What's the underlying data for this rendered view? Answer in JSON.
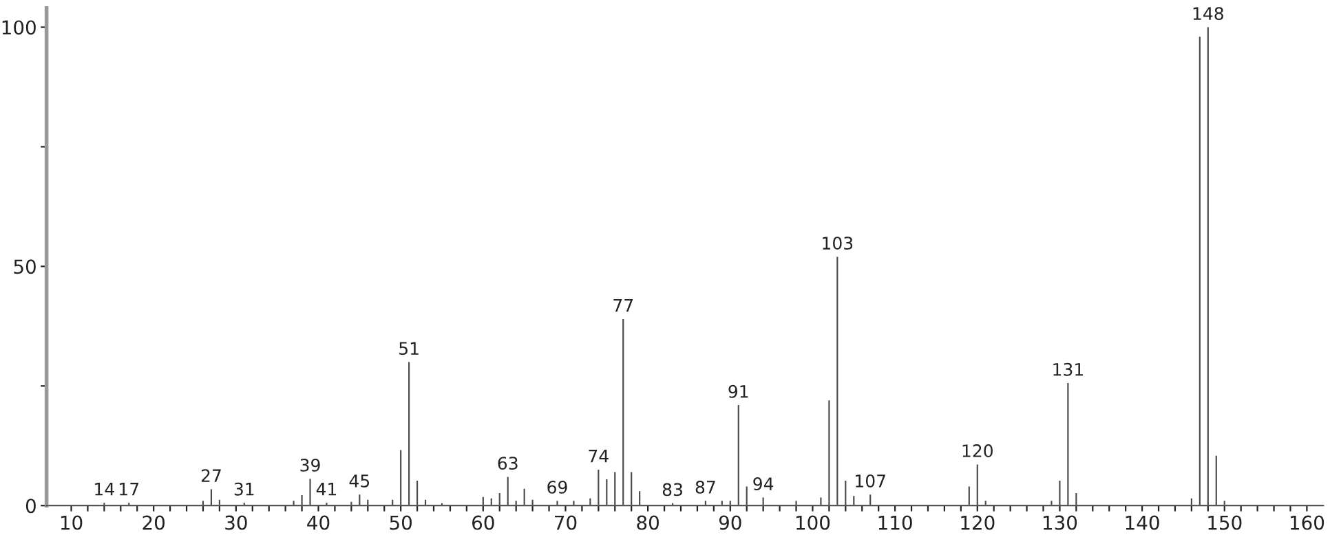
{
  "chart_data": {
    "type": "bar",
    "color": "#4a4a4a",
    "x": [
      14,
      17,
      26,
      27,
      28,
      31,
      37,
      38,
      39,
      41,
      44,
      45,
      46,
      49,
      50,
      51,
      52,
      53,
      55,
      60,
      61,
      62,
      63,
      64,
      65,
      66,
      69,
      71,
      73,
      74,
      75,
      76,
      77,
      78,
      79,
      83,
      87,
      89,
      90,
      91,
      92,
      94,
      98,
      101,
      102,
      103,
      104,
      105,
      107,
      119,
      120,
      121,
      129,
      130,
      131,
      132,
      146,
      147,
      148,
      149,
      150
    ],
    "values": [
      0.6,
      0.6,
      1,
      3.4,
      1.2,
      0.6,
      1,
      2.2,
      5.6,
      0.6,
      0.8,
      2.3,
      1.2,
      1.2,
      11.6,
      30,
      5.2,
      1.2,
      0.5,
      1.8,
      1.5,
      2.6,
      6,
      1,
      3.5,
      1.2,
      1,
      1,
      1.5,
      7.5,
      5.5,
      7,
      39,
      7,
      3,
      0.5,
      1,
      1,
      1,
      21,
      4,
      1.7,
      1,
      1.7,
      22,
      52,
      5.2,
      2,
      2.3,
      4,
      8.6,
      1,
      1,
      5.2,
      25.6,
      2.6,
      1.5,
      98,
      100,
      10.4,
      1
    ],
    "annotations": [
      {
        "text": "14",
        "x": 14,
        "y": 0.6
      },
      {
        "text": "17",
        "x": 17,
        "y": 0.6
      },
      {
        "text": "27",
        "x": 27,
        "y": 3.4
      },
      {
        "text": "31",
        "x": 31,
        "y": 0.6
      },
      {
        "text": "39",
        "x": 39,
        "y": 5.6
      },
      {
        "text": "41",
        "x": 41,
        "y": 0.6
      },
      {
        "text": "45",
        "x": 45,
        "y": 2.3
      },
      {
        "text": "51",
        "x": 51,
        "y": 30
      },
      {
        "text": "63",
        "x": 63,
        "y": 6
      },
      {
        "text": "69",
        "x": 69,
        "y": 1
      },
      {
        "text": "74",
        "x": 74,
        "y": 7.5
      },
      {
        "text": "77",
        "x": 77,
        "y": 39
      },
      {
        "text": "83",
        "x": 83,
        "y": 0.5
      },
      {
        "text": "87",
        "x": 87,
        "y": 1
      },
      {
        "text": "91",
        "x": 91,
        "y": 21
      },
      {
        "text": "94",
        "x": 94,
        "y": 1.7
      },
      {
        "text": "103",
        "x": 103,
        "y": 52
      },
      {
        "text": "107",
        "x": 107,
        "y": 2.3
      },
      {
        "text": "120",
        "x": 120,
        "y": 8.6
      },
      {
        "text": "131",
        "x": 131,
        "y": 25.6
      },
      {
        "text": "148",
        "x": 148,
        "y": 100
      }
    ],
    "xlim": [
      7,
      162
    ],
    "ylim": [
      0,
      104
    ],
    "xticks": [
      10,
      {
        "value": 12,
        "label": null
      },
      {
        "value": 14,
        "label": null
      },
      {
        "value": 16,
        "label": null
      },
      {
        "value": 18,
        "label": null
      },
      20,
      {
        "value": 22,
        "label": null
      },
      {
        "value": 24,
        "label": null
      },
      {
        "value": 26,
        "label": null
      },
      {
        "value": 28,
        "label": null
      },
      30,
      {
        "value": 32,
        "label": null
      },
      {
        "value": 34,
        "label": null
      },
      {
        "value": 36,
        "label": null
      },
      {
        "value": 38,
        "label": null
      },
      40,
      {
        "value": 42,
        "label": null
      },
      {
        "value": 44,
        "label": null
      },
      {
        "value": 46,
        "label": null
      },
      {
        "value": 48,
        "label": null
      },
      50,
      {
        "value": 52,
        "label": null
      },
      {
        "value": 54,
        "label": null
      },
      {
        "value": 56,
        "label": null
      },
      {
        "value": 58,
        "label": null
      },
      60,
      {
        "value": 62,
        "label": null
      },
      {
        "value": 64,
        "label": null
      },
      {
        "value": 66,
        "label": null
      },
      {
        "value": 68,
        "label": null
      },
      70,
      {
        "value": 72,
        "label": null
      },
      {
        "value": 74,
        "label": null
      },
      {
        "value": 76,
        "label": null
      },
      {
        "value": 78,
        "label": null
      },
      80,
      {
        "value": 82,
        "label": null
      },
      {
        "value": 84,
        "label": null
      },
      {
        "value": 86,
        "label": null
      },
      {
        "value": 88,
        "label": null
      },
      90,
      {
        "value": 92,
        "label": null
      },
      {
        "value": 94,
        "label": null
      },
      {
        "value": 96,
        "label": null
      },
      {
        "value": 98,
        "label": null
      },
      100,
      {
        "value": 102,
        "label": null
      },
      {
        "value": 104,
        "label": null
      },
      {
        "value": 106,
        "label": null
      },
      {
        "value": 108,
        "label": null
      },
      110,
      {
        "value": 112,
        "label": null
      },
      {
        "value": 114,
        "label": null
      },
      {
        "value": 116,
        "label": null
      },
      {
        "value": 118,
        "label": null
      },
      120,
      {
        "value": 122,
        "label": null
      },
      {
        "value": 124,
        "label": null
      },
      {
        "value": 126,
        "label": null
      },
      {
        "value": 128,
        "label": null
      },
      130,
      {
        "value": 132,
        "label": null
      },
      {
        "value": 134,
        "label": null
      },
      {
        "value": 136,
        "label": null
      },
      {
        "value": 138,
        "label": null
      },
      140,
      {
        "value": 142,
        "label": null
      },
      {
        "value": 144,
        "label": null
      },
      {
        "value": 146,
        "label": null
      },
      {
        "value": 148,
        "label": null
      },
      150,
      {
        "value": 152,
        "label": null
      },
      {
        "value": 154,
        "label": null
      },
      {
        "value": 156,
        "label": null
      },
      {
        "value": 158,
        "label": null
      },
      160
    ],
    "yticks": [
      0,
      {
        "value": 25,
        "label": null
      },
      50,
      {
        "value": 75,
        "label": null
      },
      100
    ],
    "grid": false,
    "legend": false
  }
}
